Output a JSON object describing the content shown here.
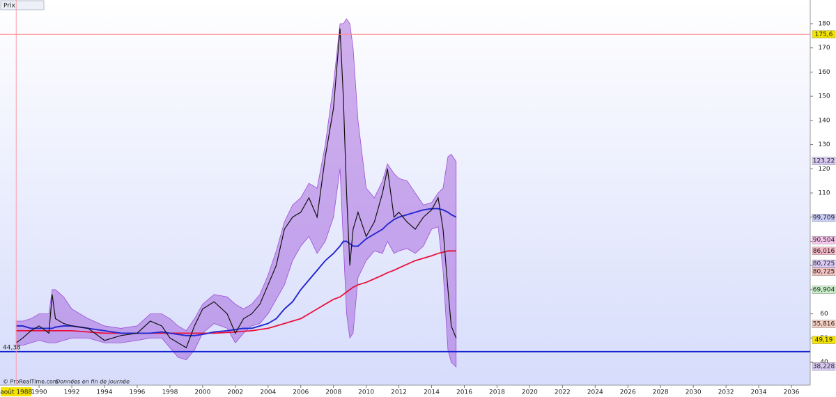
{
  "chart_data": {
    "type": "line",
    "title": "Prix",
    "source": "© ProRealTime.com",
    "note": "Données en fin de journée",
    "x": [
      1988.6,
      1989,
      1989.5,
      1990,
      1990.6,
      1990.8,
      1991,
      1991.5,
      1992,
      1993,
      1994,
      1995,
      1996,
      1996.8,
      1997.5,
      1998,
      1998.5,
      1999,
      1999.5,
      2000,
      2000.7,
      2001.5,
      2002,
      2002.5,
      2003,
      2003.5,
      2004,
      2004.5,
      2005,
      2005.5,
      2006,
      2006.5,
      2007,
      2007.5,
      2008,
      2008.4,
      2008.6,
      2008.8,
      2009,
      2009.2,
      2009.5,
      2010,
      2010.5,
      2011,
      2011.3,
      2011.7,
      2012,
      2012.5,
      2013,
      2013.5,
      2014,
      2014.4,
      2014.7,
      2015,
      2015.2,
      2015.5
    ],
    "band": {
      "color": "#9c4fd6",
      "upper": [
        57,
        57,
        58,
        60,
        60,
        70,
        70,
        67,
        62,
        58,
        55,
        54,
        55,
        60,
        60,
        58,
        55,
        53,
        58,
        64,
        68,
        67,
        64,
        62,
        64,
        68,
        76,
        86,
        98,
        105,
        108,
        114,
        112,
        130,
        155,
        180,
        180,
        182,
        180,
        170,
        140,
        112,
        108,
        115,
        122,
        118,
        116,
        115,
        110,
        105,
        106,
        110,
        112,
        125,
        126,
        123
      ],
      "lower": [
        47,
        47,
        48,
        49,
        48,
        48,
        48,
        49,
        50,
        50,
        48,
        48,
        49,
        50,
        50,
        46,
        42,
        41,
        45,
        52,
        56,
        54,
        48,
        52,
        55,
        56,
        60,
        66,
        72,
        82,
        88,
        92,
        85,
        90,
        100,
        120,
        90,
        60,
        50,
        52,
        75,
        82,
        86,
        85,
        90,
        85,
        86,
        87,
        85,
        88,
        95,
        96,
        78,
        45,
        40,
        38
      ]
    },
    "series": [
      {
        "color": "#e0207a",
        "values": [
          55,
          55,
          54,
          54,
          54,
          54,
          54.5,
          55,
          55,
          54,
          53,
          52,
          52,
          52,
          52.5,
          52,
          51.5,
          51,
          51,
          51.5,
          52.5,
          53,
          53.5,
          54,
          54,
          55,
          56,
          58,
          62,
          65,
          70,
          74,
          78,
          82,
          85,
          88,
          90,
          90,
          89,
          88,
          88,
          91,
          93,
          95,
          97,
          99,
          100,
          101,
          102,
          103,
          103.5,
          103.5,
          103,
          102,
          101,
          100
        ]
      },
      {
        "color": "#e8103a",
        "values": [
          53,
          53,
          53,
          53,
          53,
          53,
          53,
          53,
          53,
          52.5,
          52,
          52,
          52,
          52,
          52,
          52,
          52,
          52,
          52,
          52,
          52,
          52.3,
          52.5,
          52.8,
          53,
          53.5,
          54,
          55,
          56,
          57,
          58,
          60,
          62,
          64,
          66,
          67,
          68,
          69,
          70,
          71,
          72,
          73,
          74.5,
          76,
          77,
          78,
          79,
          80.5,
          82,
          83,
          84,
          85,
          85.5,
          86,
          86,
          86
        ]
      },
      {
        "color": "#1a2bd6",
        "values": [
          55,
          55,
          54,
          54,
          54,
          54,
          54.5,
          55,
          55,
          54,
          53,
          52,
          52,
          52,
          52.5,
          52,
          51.5,
          51,
          51,
          51.5,
          52.5,
          53,
          53.5,
          54,
          54,
          55,
          56,
          58,
          62,
          65,
          70,
          74,
          78,
          82,
          85,
          88,
          90,
          90,
          89,
          88,
          88,
          91,
          93,
          95,
          97,
          99,
          100,
          101,
          102,
          103,
          103.5,
          103.5,
          103,
          102,
          101,
          100
        ]
      },
      {
        "color": "#111111",
        "values": [
          48,
          50,
          53,
          55,
          52,
          68,
          58,
          56,
          55,
          54,
          49,
          51,
          52,
          57,
          55,
          50,
          48,
          46,
          55,
          62,
          65,
          60,
          52,
          58,
          60,
          64,
          72,
          80,
          95,
          100,
          102,
          108,
          100,
          125,
          145,
          178,
          150,
          110,
          80,
          95,
          102,
          92,
          98,
          110,
          120,
          100,
          102,
          98,
          95,
          100,
          103,
          108,
          95,
          70,
          55,
          50
        ]
      }
    ],
    "xlim": [
      1987.61,
      2037.15
    ],
    "ylim": [
      30.5,
      189.8
    ],
    "xticks": [
      1990,
      1992,
      1994,
      1996,
      1998,
      2000,
      2002,
      2004,
      2006,
      2008,
      2010,
      2012,
      2014,
      2016,
      2018,
      2020,
      2022,
      2024,
      2026,
      2028,
      2030,
      2032,
      2034,
      2036
    ],
    "yticks": [
      40,
      50,
      60,
      70,
      80,
      90,
      100,
      110,
      120,
      130,
      140,
      150,
      160,
      170,
      180
    ],
    "hlines": [
      {
        "value": 175.6,
        "color": "#ff8a8a"
      },
      {
        "value": 44.38,
        "color": "#1020d0"
      }
    ],
    "cursor": {
      "x": {
        "value": 1988.6,
        "label": "août 1988"
      },
      "y": {
        "value": 44.38,
        "label": "44,38"
      }
    },
    "price_labels": [
      {
        "value": 175.6,
        "label": "175,6",
        "color": "#f4e400"
      },
      {
        "value": 123.22,
        "label": "123,22",
        "color": "#d9c9f5"
      },
      {
        "value": 99.709,
        "label": "99,709",
        "color": "#c9cdf8"
      },
      {
        "value": 90.504,
        "label": "90,504",
        "color": "#f7c6ec"
      },
      {
        "value": 86.016,
        "label": "86,016",
        "color": "#f5b7c6"
      },
      {
        "value": 80.725,
        "label": "80,725",
        "color": "#d9c9f5"
      },
      {
        "value": 80.725,
        "label": "80,725",
        "color": "#f5c0c0"
      },
      {
        "value": 69.904,
        "label": "69,904",
        "color": "#c9f0c9"
      },
      {
        "value": 55.816,
        "label": "55,816",
        "color": "#f7cfc2"
      },
      {
        "value": 49.19,
        "label": "49,19",
        "color": "#f4e400"
      },
      {
        "value": 38.228,
        "label": "38,228",
        "color": "#d9c9f5"
      }
    ]
  }
}
